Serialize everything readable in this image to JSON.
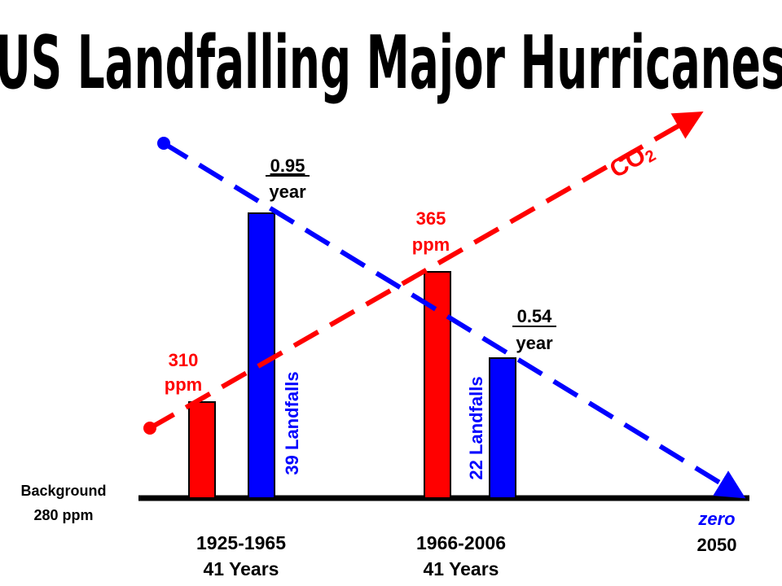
{
  "chart_data": {
    "type": "bar",
    "title": "US Landfalling Major Hurricanes",
    "categories": [
      "1925-1965",
      "1966-2006"
    ],
    "category_sublabels": [
      "41 Years",
      "41 Years"
    ],
    "series": [
      {
        "color": "#ff0000",
        "values": [
          310,
          365
        ],
        "value_labels": [
          "310 ppm",
          "365 ppm"
        ]
      },
      {
        "color": "#0000ff",
        "values": [
          0.95,
          0.54
        ],
        "value_labels": [
          "0.95 year",
          "0.54 year"
        ],
        "bar_labels": [
          "39 Landfalls",
          "22 Landfalls"
        ]
      }
    ],
    "baseline": {
      "label_line1": "Background",
      "label_line2": "280 ppm"
    },
    "co2_trend": {
      "label": "CO",
      "subscript": "2",
      "color": "#ff0000",
      "arrow": true
    },
    "landfall_trend": {
      "color": "#0000ff",
      "end_label": "zero",
      "end_year": "2050",
      "arrow": true
    }
  },
  "labels": {
    "bar1_red_line1": "310",
    "bar1_red_line2": "ppm",
    "bar1_blue_line1": "0.95",
    "bar1_blue_line2": "year",
    "bar2_red_line1": "365",
    "bar2_red_line2": "ppm",
    "bar2_blue_line1": "0.54",
    "bar2_blue_line2": "year",
    "period1_line1": "1925-1965",
    "period1_line2": "41 Years",
    "period2_line1": "1966-2006",
    "period2_line2": "41 Years",
    "landfalls1": "39 Landfalls",
    "landfalls2": "22 Landfalls",
    "background_line1": "Background",
    "background_line2": "280 ppm",
    "zero": "zero",
    "year_2050": "2050",
    "co2": "CO",
    "co2_sub": "2"
  }
}
